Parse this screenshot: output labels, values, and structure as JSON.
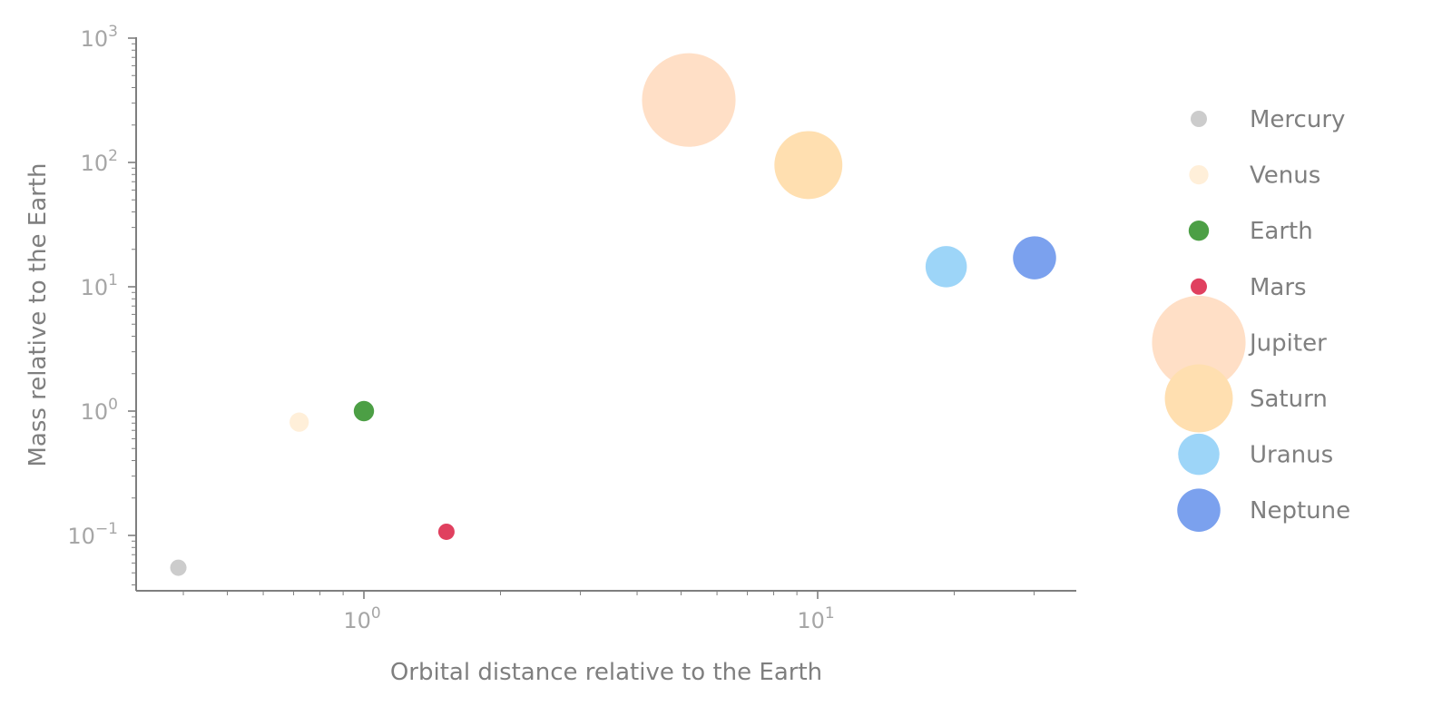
{
  "chart_data": {
    "type": "scatter",
    "title": "",
    "xlabel": "Orbital distance relative to the Earth",
    "ylabel": "Mass relative to the Earth",
    "xscale": "log",
    "yscale": "log",
    "xlim": [
      0.3,
      33
    ],
    "ylim": [
      0.04,
      1000
    ],
    "x_ticks": [
      {
        "base": "10",
        "exp": "0",
        "value": 1
      },
      {
        "base": "10",
        "exp": "1",
        "value": 10
      }
    ],
    "y_ticks": [
      {
        "base": "10",
        "exp": "−1",
        "value": 0.1
      },
      {
        "base": "10",
        "exp": "0",
        "value": 1
      },
      {
        "base": "10",
        "exp": "1",
        "value": 10
      },
      {
        "base": "10",
        "exp": "2",
        "value": 100
      },
      {
        "base": "10",
        "exp": "3",
        "value": 1000
      }
    ],
    "grid": false,
    "legend_position": "right",
    "series": [
      {
        "name": "Mercury",
        "x": 0.39,
        "y": 0.055,
        "color": "#cccccc"
      },
      {
        "name": "Venus",
        "x": 0.72,
        "y": 0.815,
        "color": "#ffefd9"
      },
      {
        "name": "Earth",
        "x": 1.0,
        "y": 1.0,
        "color": "#4c9f45"
      },
      {
        "name": "Mars",
        "x": 1.52,
        "y": 0.107,
        "color": "#e0405f"
      },
      {
        "name": "Jupiter",
        "x": 5.2,
        "y": 317.8,
        "color": "#ffdfc6"
      },
      {
        "name": "Saturn",
        "x": 9.54,
        "y": 95.2,
        "color": "#ffdfb0"
      },
      {
        "name": "Uranus",
        "x": 19.2,
        "y": 14.5,
        "color": "#9dd5f8"
      },
      {
        "name": "Neptune",
        "x": 30.06,
        "y": 17.1,
        "color": "#7ba1ee"
      }
    ]
  }
}
